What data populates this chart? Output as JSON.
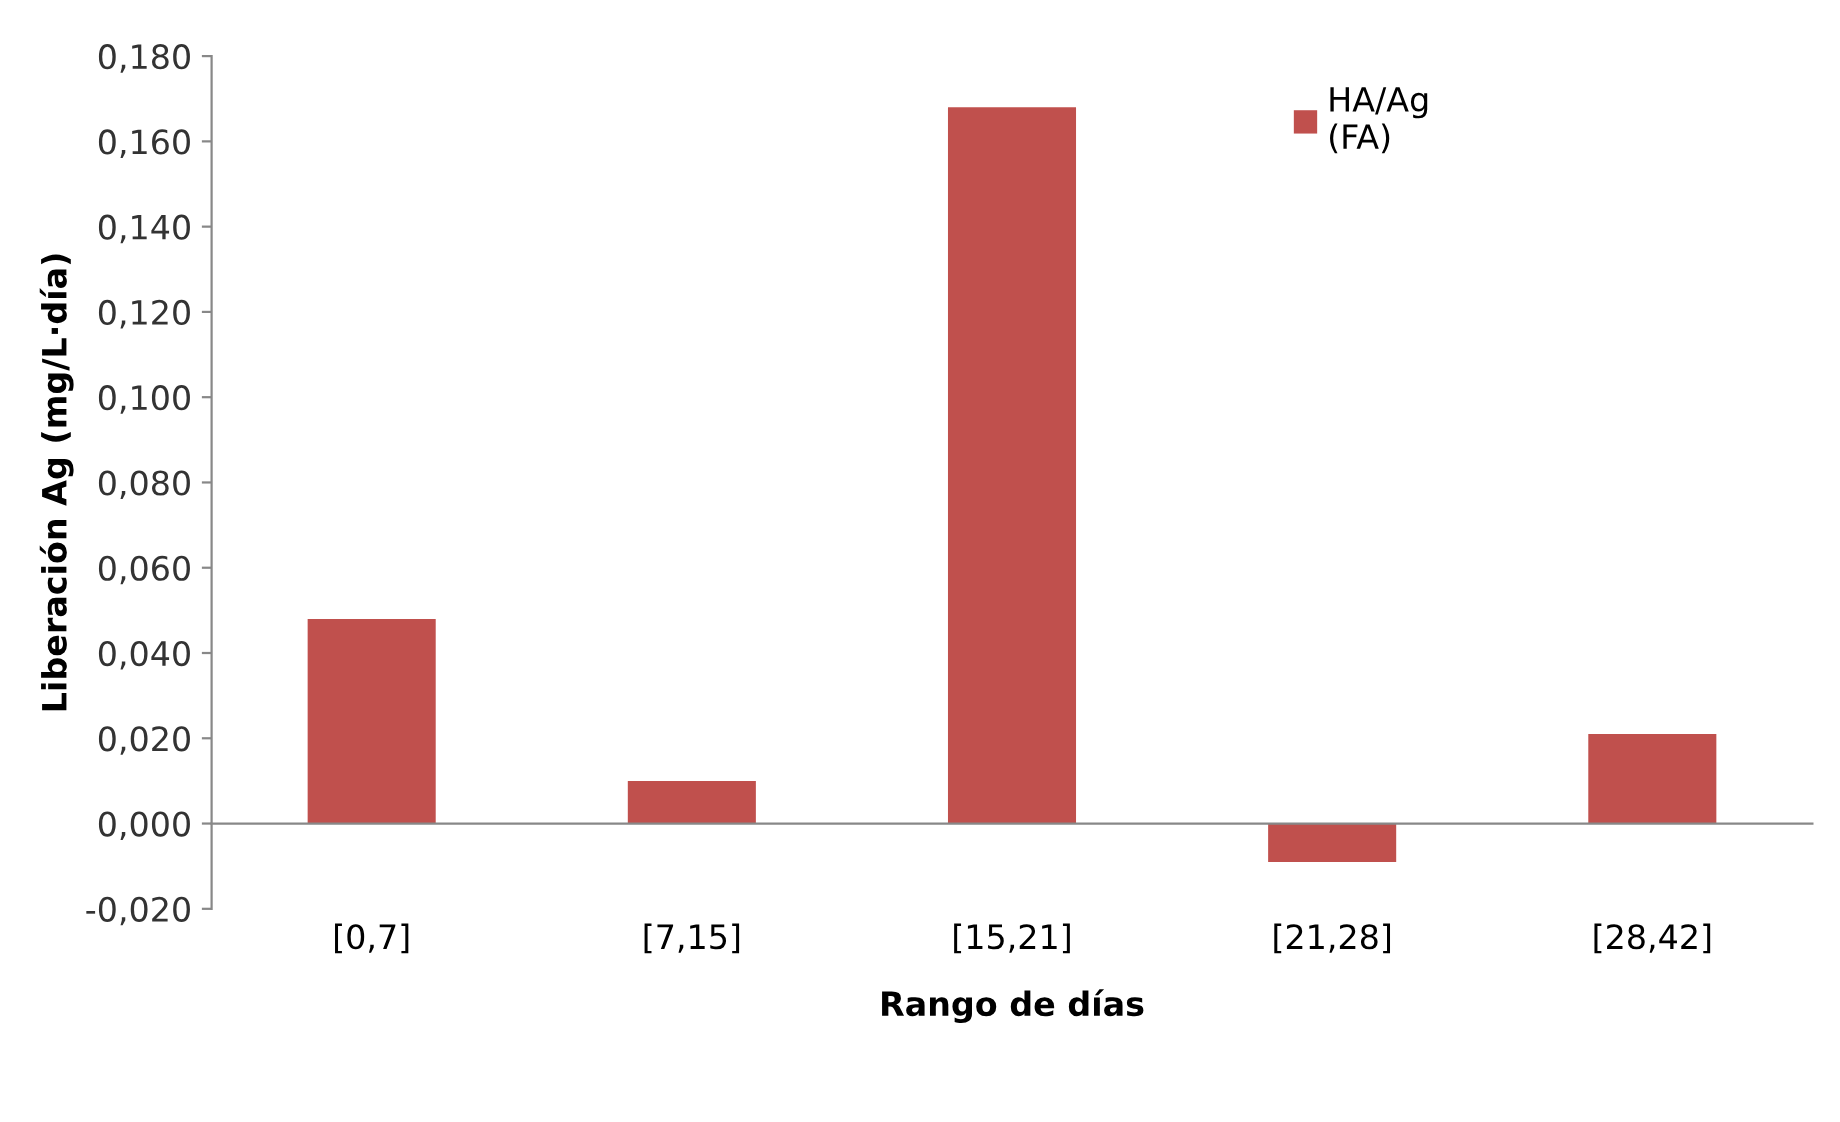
{
  "chart_data": {
    "type": "bar",
    "xlabel": "Rango de días",
    "ylabel": "Liberación Ag (mg/L·día)",
    "categories": [
      "[0,7]",
      "[7,15]",
      "[15,21]",
      "[21,28]",
      "[28,42]"
    ],
    "series": [
      {
        "name": "HA/Ag\n(FA)",
        "color": "#c0504d",
        "values": [
          0.048,
          0.01,
          0.168,
          -0.009,
          0.021
        ]
      }
    ],
    "ylim": [
      -0.02,
      0.18
    ],
    "yticks": [
      {
        "value": -0.02,
        "label": "-0,020"
      },
      {
        "value": 0,
        "label": "0,000"
      },
      {
        "value": 0.02,
        "label": "0,020"
      },
      {
        "value": 0.04,
        "label": "0,040"
      },
      {
        "value": 0.06,
        "label": "0,060"
      },
      {
        "value": 0.08,
        "label": "0,080"
      },
      {
        "value": 0.1,
        "label": "0,100"
      },
      {
        "value": 0.12,
        "label": "0,120"
      },
      {
        "value": 0.14,
        "label": "0,140"
      },
      {
        "value": 0.16,
        "label": "0,160"
      },
      {
        "value": 0.18,
        "label": "0,180"
      }
    ],
    "legend": "top right"
  }
}
